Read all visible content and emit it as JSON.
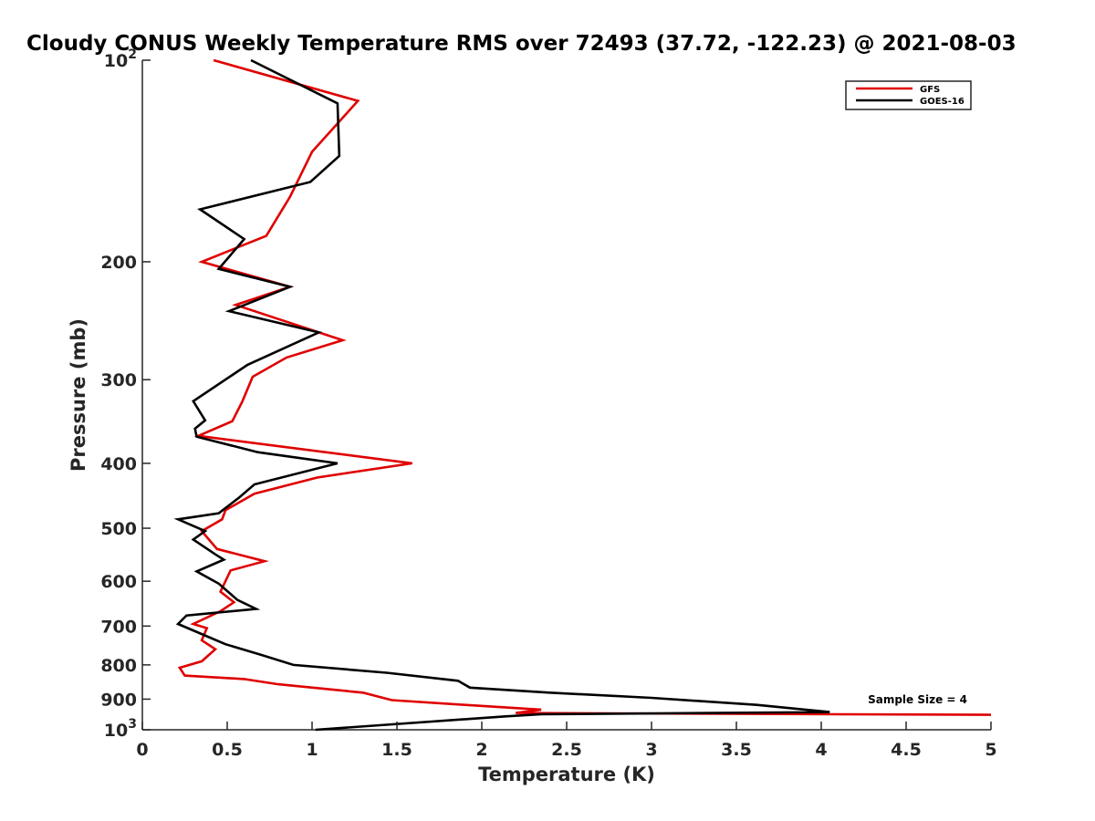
{
  "chart_data": {
    "type": "line",
    "title": "Cloudy CONUS Weekly Temperature RMS over 72493 (37.72, -122.23) @ 2021-08-03",
    "xlabel": "Temperature (K)",
    "ylabel": "Pressure (mb)",
    "xlim": [
      0,
      5
    ],
    "ylim": [
      100,
      1000
    ],
    "y_scale": "log",
    "y_reversed": true,
    "grid": false,
    "legend_position": "top-right",
    "x_ticks": [
      {
        "value": 0,
        "label": "0"
      },
      {
        "value": 0.5,
        "label": "0.5"
      },
      {
        "value": 1,
        "label": "1"
      },
      {
        "value": 1.5,
        "label": "1.5"
      },
      {
        "value": 2,
        "label": "2"
      },
      {
        "value": 2.5,
        "label": "2.5"
      },
      {
        "value": 3,
        "label": "3"
      },
      {
        "value": 3.5,
        "label": "3.5"
      },
      {
        "value": 4,
        "label": "4"
      },
      {
        "value": 4.5,
        "label": "4.5"
      },
      {
        "value": 5,
        "label": "5"
      }
    ],
    "y_ticks": [
      {
        "value": 100,
        "base": "10",
        "exp": "2"
      },
      {
        "value": 200,
        "base": "200",
        "exp": ""
      },
      {
        "value": 300,
        "base": "300",
        "exp": ""
      },
      {
        "value": 400,
        "base": "400",
        "exp": ""
      },
      {
        "value": 500,
        "base": "500",
        "exp": ""
      },
      {
        "value": 600,
        "base": "600",
        "exp": ""
      },
      {
        "value": 700,
        "base": "700",
        "exp": ""
      },
      {
        "value": 800,
        "base": "800",
        "exp": ""
      },
      {
        "value": 900,
        "base": "900",
        "exp": ""
      },
      {
        "value": 1000,
        "base": "10",
        "exp": "3"
      }
    ],
    "annotation": "Sample Size = 4",
    "series": [
      {
        "name": "GFS",
        "color": "#e00000",
        "points": [
          [
            0.42,
            100
          ],
          [
            1.27,
            115
          ],
          [
            1.0,
            137
          ],
          [
            0.87,
            160
          ],
          [
            0.73,
            183
          ],
          [
            0.35,
            200
          ],
          [
            0.87,
            218
          ],
          [
            0.55,
            232
          ],
          [
            1.18,
            262
          ],
          [
            0.85,
            278
          ],
          [
            0.65,
            297
          ],
          [
            0.59,
            323
          ],
          [
            0.53,
            346
          ],
          [
            0.33,
            364
          ],
          [
            1.59,
            400
          ],
          [
            1.03,
            420
          ],
          [
            0.66,
            444
          ],
          [
            0.49,
            470
          ],
          [
            0.47,
            485
          ],
          [
            0.35,
            505
          ],
          [
            0.44,
            537
          ],
          [
            0.72,
            560
          ],
          [
            0.52,
            578
          ],
          [
            0.46,
            622
          ],
          [
            0.54,
            645
          ],
          [
            0.46,
            665
          ],
          [
            0.3,
            695
          ],
          [
            0.38,
            705
          ],
          [
            0.35,
            735
          ],
          [
            0.43,
            758
          ],
          [
            0.35,
            790
          ],
          [
            0.22,
            808
          ],
          [
            0.25,
            830
          ],
          [
            0.6,
            840
          ],
          [
            0.8,
            855
          ],
          [
            1.3,
            880
          ],
          [
            1.47,
            903
          ],
          [
            1.9,
            918
          ],
          [
            2.35,
            933
          ],
          [
            2.2,
            944
          ],
          [
            4.1,
            948
          ],
          [
            5.0,
            950
          ]
        ]
      },
      {
        "name": "GOES-16",
        "color": "#000000",
        "points": [
          [
            0.64,
            100
          ],
          [
            1.15,
            116
          ],
          [
            1.16,
            139
          ],
          [
            0.99,
            152
          ],
          [
            0.34,
            167
          ],
          [
            0.6,
            185
          ],
          [
            0.45,
            205
          ],
          [
            0.87,
            218
          ],
          [
            0.51,
            237
          ],
          [
            1.04,
            255
          ],
          [
            0.62,
            285
          ],
          [
            0.3,
            323
          ],
          [
            0.37,
            345
          ],
          [
            0.31,
            355
          ],
          [
            0.32,
            365
          ],
          [
            0.68,
            385
          ],
          [
            1.15,
            400
          ],
          [
            0.66,
            430
          ],
          [
            0.57,
            450
          ],
          [
            0.45,
            475
          ],
          [
            0.21,
            485
          ],
          [
            0.37,
            505
          ],
          [
            0.3,
            520
          ],
          [
            0.43,
            547
          ],
          [
            0.48,
            557
          ],
          [
            0.32,
            580
          ],
          [
            0.45,
            605
          ],
          [
            0.56,
            640
          ],
          [
            0.67,
            660
          ],
          [
            0.26,
            675
          ],
          [
            0.21,
            695
          ],
          [
            0.38,
            725
          ],
          [
            0.49,
            745
          ],
          [
            0.7,
            773
          ],
          [
            0.89,
            800
          ],
          [
            1.44,
            822
          ],
          [
            1.86,
            845
          ],
          [
            1.93,
            865
          ],
          [
            2.4,
            880
          ],
          [
            3.0,
            896
          ],
          [
            3.62,
            918
          ],
          [
            4.05,
            941
          ],
          [
            2.35,
            948
          ],
          [
            2.14,
            955
          ],
          [
            1.02,
            1000
          ]
        ]
      }
    ]
  }
}
